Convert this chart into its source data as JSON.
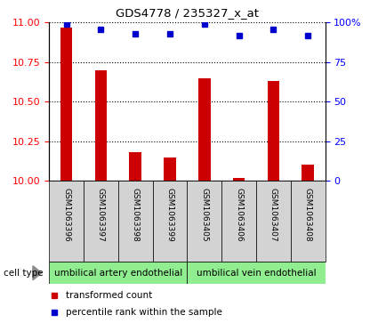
{
  "title": "GDS4778 / 235327_x_at",
  "categories": [
    "GSM1063396",
    "GSM1063397",
    "GSM1063398",
    "GSM1063399",
    "GSM1063405",
    "GSM1063406",
    "GSM1063407",
    "GSM1063408"
  ],
  "bar_values": [
    10.97,
    10.7,
    10.18,
    10.15,
    10.65,
    10.02,
    10.63,
    10.1
  ],
  "percentile_values": [
    99,
    96,
    93,
    93,
    99,
    92,
    96,
    92
  ],
  "ylim_left": [
    10,
    11
  ],
  "ylim_right": [
    0,
    100
  ],
  "yticks_left": [
    10,
    10.25,
    10.5,
    10.75,
    11
  ],
  "yticks_right": [
    0,
    25,
    50,
    75,
    100
  ],
  "bar_color": "#cc0000",
  "dot_color": "#0000cc",
  "bar_width": 0.35,
  "group1_label": "umbilical artery endothelial",
  "group2_label": "umbilical vein endothelial",
  "group1_indices": [
    0,
    1,
    2,
    3
  ],
  "group2_indices": [
    4,
    5,
    6,
    7
  ],
  "cell_type_label": "cell type",
  "legend_bar_label": "transformed count",
  "legend_dot_label": "percentile rank within the sample",
  "bg_color": "#d3d3d3",
  "group_bg_color": "#90ee90",
  "plot_bg_color": "#ffffff",
  "spine_color": "#000000"
}
